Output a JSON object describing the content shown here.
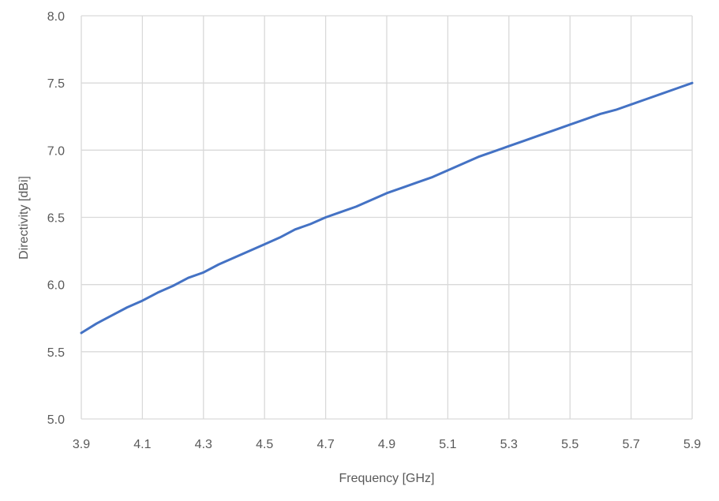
{
  "chart_data": {
    "type": "line",
    "title": "",
    "xlabel": "Frequency [GHz]",
    "ylabel": "Directivity [dBi]",
    "xlim": [
      3.9,
      5.9
    ],
    "ylim": [
      5.0,
      8.0
    ],
    "x_ticks": [
      "3.9",
      "4.1",
      "4.3",
      "4.5",
      "4.7",
      "4.9",
      "5.1",
      "5.3",
      "5.5",
      "5.7",
      "5.9"
    ],
    "y_ticks": [
      "5.0",
      "5.5",
      "6.0",
      "6.5",
      "7.0",
      "7.5",
      "8.0"
    ],
    "grid": true,
    "legend": "none",
    "line_color": "#4472C4",
    "grid_color": "#D9D9D9",
    "series": [
      {
        "x": [
          3.9,
          3.95,
          4.0,
          4.05,
          4.1,
          4.15,
          4.2,
          4.25,
          4.3,
          4.35,
          4.4,
          4.45,
          4.5,
          4.55,
          4.6,
          4.65,
          4.7,
          4.75,
          4.8,
          4.85,
          4.9,
          4.95,
          5.0,
          5.05,
          5.1,
          5.15,
          5.2,
          5.25,
          5.3,
          5.35,
          5.4,
          5.45,
          5.5,
          5.55,
          5.6,
          5.65,
          5.7,
          5.75,
          5.8,
          5.85,
          5.9
        ],
        "values": [
          5.64,
          5.71,
          5.77,
          5.83,
          5.88,
          5.94,
          5.99,
          6.05,
          6.09,
          6.15,
          6.2,
          6.25,
          6.3,
          6.35,
          6.41,
          6.45,
          6.5,
          6.54,
          6.58,
          6.63,
          6.68,
          6.72,
          6.76,
          6.8,
          6.85,
          6.9,
          6.95,
          6.99,
          7.03,
          7.07,
          7.11,
          7.15,
          7.19,
          7.23,
          7.27,
          7.3,
          7.34,
          7.38,
          7.42,
          7.46,
          7.5
        ]
      }
    ]
  }
}
